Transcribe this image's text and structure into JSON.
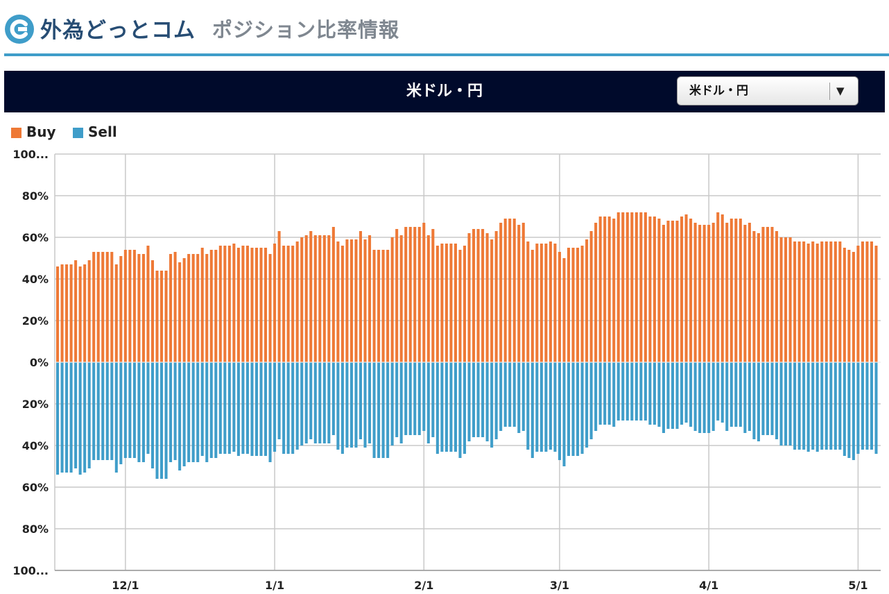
{
  "header": {
    "logo_icon": "fx-logo-icon",
    "brand": "外為どっとコム",
    "page_title": "ポジション比率情報",
    "brand_color": "#274d74",
    "rule_color": "#3f9dc9"
  },
  "panel": {
    "title": "米ドル・円",
    "selected_pair": "米ドル・円",
    "dropdown_icon": "triangle-down-icon"
  },
  "chart_data": {
    "type": "bar",
    "legend": [
      {
        "name": "Buy",
        "color": "#ee7936"
      },
      {
        "name": "Sell",
        "color": "#3f9dc9"
      }
    ],
    "legend_position": "top-left",
    "ylim": [
      -100,
      100
    ],
    "y_ticks": [
      {
        "value": 100,
        "label": "100..."
      },
      {
        "value": 80,
        "label": "80%"
      },
      {
        "value": 60,
        "label": "60%"
      },
      {
        "value": 40,
        "label": "40%"
      },
      {
        "value": 20,
        "label": "20%"
      },
      {
        "value": 0,
        "label": "0%"
      },
      {
        "value": -20,
        "label": "20%"
      },
      {
        "value": -40,
        "label": "40%"
      },
      {
        "value": -60,
        "label": "60%"
      },
      {
        "value": -80,
        "label": "80%"
      },
      {
        "value": -100,
        "label": "100..."
      }
    ],
    "x_ticks": [
      {
        "label": "12/1",
        "index": 15
      },
      {
        "label": "1/1",
        "index": 48
      },
      {
        "label": "2/1",
        "index": 81
      },
      {
        "label": "3/1",
        "index": 111
      },
      {
        "label": "4/1",
        "index": 144
      },
      {
        "label": "5/1",
        "index": 177
      }
    ],
    "grid": true,
    "buy": [
      46,
      47,
      47,
      47,
      49,
      46,
      47,
      49,
      53,
      53,
      53,
      53,
      53,
      47,
      51,
      54,
      54,
      54,
      52,
      52,
      56,
      49,
      44,
      44,
      44,
      52,
      53,
      48,
      50,
      52,
      52,
      52,
      55,
      52,
      54,
      54,
      56,
      56,
      56,
      57,
      55,
      56,
      56,
      55,
      55,
      55,
      55,
      52,
      57,
      63,
      56,
      56,
      56,
      58,
      60,
      61,
      63,
      61,
      61,
      61,
      61,
      65,
      58,
      56,
      59,
      59,
      59,
      63,
      59,
      61,
      54,
      54,
      54,
      54,
      60,
      64,
      61,
      65,
      65,
      65,
      65,
      67,
      61,
      64,
      56,
      57,
      57,
      57,
      57,
      54,
      56,
      62,
      64,
      64,
      64,
      62,
      59,
      63,
      67,
      69,
      69,
      69,
      66,
      67,
      58,
      54,
      57,
      57,
      57,
      58,
      57,
      53,
      50,
      55,
      55,
      55,
      56,
      59,
      63,
      67,
      70,
      70,
      70,
      69,
      72,
      72,
      72,
      72,
      72,
      72,
      72,
      70,
      70,
      69,
      66,
      68,
      68,
      68,
      70,
      71,
      69,
      67,
      66,
      66,
      66,
      67,
      72,
      71,
      67,
      69,
      69,
      69,
      66,
      67,
      63,
      62,
      65,
      65,
      65,
      63,
      60,
      60,
      60,
      58,
      58,
      58,
      57,
      58,
      57,
      58,
      58,
      58,
      58,
      58,
      55,
      54,
      53,
      56,
      58,
      58,
      58,
      56
    ],
    "sell": [
      54,
      53,
      53,
      53,
      51,
      54,
      53,
      51,
      47,
      47,
      47,
      47,
      47,
      53,
      49,
      46,
      46,
      46,
      48,
      48,
      44,
      51,
      56,
      56,
      56,
      48,
      47,
      52,
      50,
      48,
      48,
      48,
      45,
      48,
      46,
      46,
      44,
      44,
      44,
      43,
      45,
      44,
      44,
      45,
      45,
      45,
      45,
      48,
      43,
      37,
      44,
      44,
      44,
      42,
      40,
      39,
      37,
      39,
      39,
      39,
      39,
      35,
      42,
      44,
      41,
      41,
      41,
      37,
      41,
      39,
      46,
      46,
      46,
      46,
      40,
      36,
      39,
      35,
      35,
      35,
      35,
      33,
      39,
      36,
      44,
      43,
      43,
      43,
      43,
      46,
      44,
      38,
      36,
      36,
      36,
      38,
      41,
      37,
      33,
      31,
      31,
      31,
      34,
      33,
      42,
      46,
      43,
      43,
      43,
      42,
      43,
      47,
      50,
      45,
      45,
      45,
      44,
      41,
      37,
      33,
      30,
      30,
      30,
      31,
      28,
      28,
      28,
      28,
      28,
      28,
      28,
      30,
      30,
      31,
      34,
      32,
      32,
      32,
      30,
      29,
      31,
      33,
      34,
      34,
      34,
      33,
      28,
      29,
      33,
      31,
      31,
      31,
      34,
      33,
      37,
      38,
      35,
      35,
      35,
      37,
      40,
      40,
      40,
      42,
      42,
      42,
      43,
      42,
      43,
      42,
      42,
      42,
      42,
      42,
      45,
      46,
      47,
      44,
      42,
      42,
      42,
      44
    ]
  }
}
